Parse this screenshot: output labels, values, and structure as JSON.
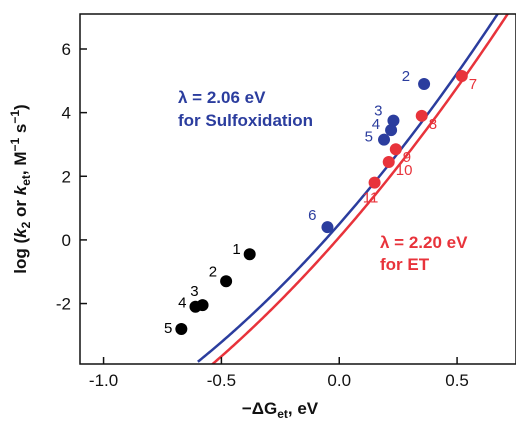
{
  "chart_data": {
    "type": "scatter",
    "xlabel": "−ΔG",
    "xlabel_sub": "et",
    "xlabel_unit": ", eV",
    "ylabel_parts": [
      "log (",
      "k",
      "2",
      " or ",
      "k",
      "et",
      ", M",
      "−1",
      " s",
      "−1",
      ")"
    ],
    "xlim": [
      -1.1,
      0.75
    ],
    "ylim": [
      -3.9,
      7.1
    ],
    "x_ticks": [
      -1.0,
      -0.5,
      0.0,
      0.5
    ],
    "x_tick_labels": [
      "-1.0",
      "-0.5",
      "0.0",
      "0.5"
    ],
    "y_ticks": [
      -2,
      0,
      2,
      4,
      6
    ],
    "y_tick_labels": [
      "-2",
      "0",
      "2",
      "4",
      "6"
    ],
    "grid": false,
    "colors": {
      "sulfoxidation": "#2b3d9e",
      "et": "#e8333b",
      "uncorrelated": "#000000"
    },
    "series": [
      {
        "key": "sulfoxidation",
        "points": [
          {
            "label": "2",
            "x": 0.36,
            "y": 4.9
          },
          {
            "label": "3",
            "x": 0.23,
            "y": 3.75
          },
          {
            "label": "4",
            "x": 0.22,
            "y": 3.45
          },
          {
            "label": "5",
            "x": 0.19,
            "y": 3.15
          },
          {
            "label": "6",
            "x": -0.05,
            "y": 0.4
          }
        ],
        "curve": {
          "lambda_eV": 2.06,
          "x_at_y0": -0.06
        }
      },
      {
        "key": "et",
        "points": [
          {
            "label": "7",
            "x": 0.52,
            "y": 5.15
          },
          {
            "label": "8",
            "x": 0.35,
            "y": 3.9
          },
          {
            "label": "9",
            "x": 0.24,
            "y": 2.85
          },
          {
            "label": "10",
            "x": 0.21,
            "y": 2.45
          },
          {
            "label": "11",
            "x": 0.15,
            "y": 1.8
          }
        ],
        "curve": {
          "lambda_eV": 2.2,
          "x_at_y0": -0.01
        }
      },
      {
        "key": "uncorrelated",
        "points": [
          {
            "label": "1",
            "x": -0.38,
            "y": -0.45
          },
          {
            "label": "2",
            "x": -0.48,
            "y": -1.3
          },
          {
            "label": "3",
            "x": -0.58,
            "y": -2.05
          },
          {
            "label": "4",
            "x": -0.61,
            "y": -2.1
          },
          {
            "label": "5",
            "x": -0.67,
            "y": -2.8
          }
        ]
      }
    ],
    "annotations": [
      {
        "key": "sulfox",
        "line1": "λ = 2.06 eV",
        "line2": "for Sulfoxidation"
      },
      {
        "key": "et",
        "line1": "λ = 2.20 eV",
        "line2": "for ET"
      }
    ]
  }
}
